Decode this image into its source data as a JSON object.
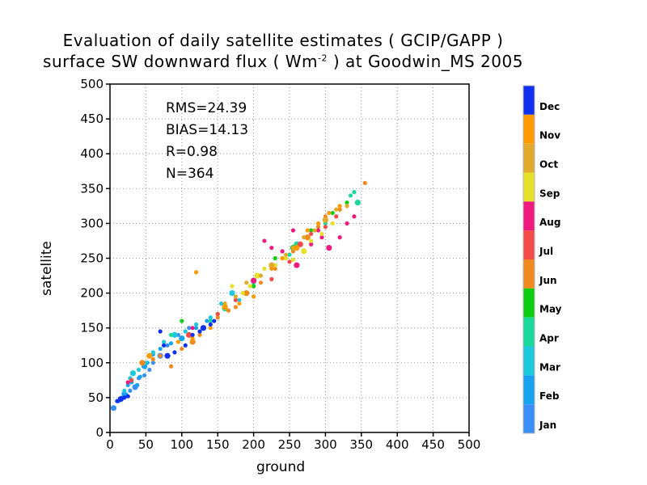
{
  "title": {
    "line1": "Evaluation of daily satellite estimates ( GCIP/GAPP )",
    "line2_pre": "surface SW downward flux ( Wm",
    "line2_sup": "-2",
    "line2_post": " ) at Goodwin_MS 2005"
  },
  "stats": {
    "rms": "RMS=24.39",
    "bias": "BIAS=14.13",
    "r": "R=0.98",
    "n": "N=364"
  },
  "chart_data": {
    "type": "scatter",
    "title": "Evaluation of daily satellite estimates ( GCIP/GAPP ) surface SW downward flux ( Wm-2 ) at Goodwin_MS 2005",
    "xlabel": "ground",
    "ylabel": "satellite",
    "xlim": [
      0,
      500
    ],
    "ylim": [
      0,
      500
    ],
    "xticks": [
      0,
      50,
      100,
      150,
      200,
      250,
      300,
      350,
      400,
      450,
      500
    ],
    "yticks": [
      0,
      50,
      100,
      150,
      200,
      250,
      300,
      350,
      400,
      450,
      500
    ],
    "grid": true,
    "legend": {
      "type": "colorbar",
      "placement": "right",
      "entries": [
        {
          "label": "Jan",
          "color": "#3a8ef5"
        },
        {
          "label": "Feb",
          "color": "#17a3f0"
        },
        {
          "label": "Mar",
          "color": "#1ec8dc"
        },
        {
          "label": "Apr",
          "color": "#19d89a"
        },
        {
          "label": "May",
          "color": "#0fce12"
        },
        {
          "label": "Jun",
          "color": "#f08a1e"
        },
        {
          "label": "Jul",
          "color": "#f54a4a"
        },
        {
          "label": "Aug",
          "color": "#ee1a7e"
        },
        {
          "label": "Sep",
          "color": "#e6e02a"
        },
        {
          "label": "Oct",
          "color": "#e2aa2c"
        },
        {
          "label": "Nov",
          "color": "#ff9b00"
        },
        {
          "label": "Dec",
          "color": "#1030f0"
        }
      ]
    },
    "series": [
      {
        "name": "Jan",
        "color": "#3a8ef5",
        "points": [
          [
            5,
            35
          ],
          [
            12,
            45
          ],
          [
            18,
            50
          ],
          [
            22,
            55
          ],
          [
            28,
            60
          ],
          [
            35,
            65
          ],
          [
            40,
            78
          ],
          [
            48,
            82
          ],
          [
            55,
            90
          ],
          [
            60,
            100
          ],
          [
            70,
            110
          ],
          [
            80,
            125
          ],
          [
            95,
            140
          ],
          [
            110,
            150
          ]
        ]
      },
      {
        "name": "Feb",
        "color": "#17a3f0",
        "points": [
          [
            15,
            48
          ],
          [
            20,
            55
          ],
          [
            25,
            68
          ],
          [
            30,
            72
          ],
          [
            38,
            68
          ],
          [
            42,
            80
          ],
          [
            48,
            95
          ],
          [
            52,
            100
          ],
          [
            60,
            112
          ],
          [
            70,
            120
          ],
          [
            85,
            128
          ],
          [
            100,
            135
          ],
          [
            120,
            150
          ],
          [
            135,
            160
          ]
        ]
      },
      {
        "name": "Mar",
        "color": "#1ec8dc",
        "points": [
          [
            20,
            60
          ],
          [
            28,
            78
          ],
          [
            32,
            85
          ],
          [
            40,
            90
          ],
          [
            50,
            100
          ],
          [
            60,
            115
          ],
          [
            75,
            130
          ],
          [
            90,
            140
          ],
          [
            105,
            145
          ],
          [
            120,
            155
          ],
          [
            140,
            165
          ],
          [
            155,
            185
          ],
          [
            170,
            200
          ],
          [
            180,
            190
          ]
        ]
      },
      {
        "name": "Apr",
        "color": "#19d89a",
        "points": [
          [
            85,
            140
          ],
          [
            95,
            130
          ],
          [
            140,
            160
          ],
          [
            160,
            178
          ],
          [
            190,
            200
          ],
          [
            200,
            215
          ],
          [
            230,
            240
          ],
          [
            250,
            255
          ],
          [
            260,
            270
          ],
          [
            300,
            300
          ],
          [
            320,
            320
          ],
          [
            335,
            340
          ],
          [
            340,
            345
          ],
          [
            345,
            330
          ]
        ]
      },
      {
        "name": "May",
        "color": "#0fce12",
        "points": [
          [
            100,
            160
          ],
          [
            150,
            170
          ],
          [
            200,
            210
          ],
          [
            230,
            250
          ],
          [
            255,
            265
          ],
          [
            280,
            290
          ],
          [
            300,
            305
          ],
          [
            310,
            315
          ],
          [
            330,
            330
          ]
        ]
      },
      {
        "name": "Jun",
        "color": "#f08a1e",
        "points": [
          [
            45,
            100
          ],
          [
            60,
            105
          ],
          [
            70,
            110
          ],
          [
            85,
            95
          ],
          [
            100,
            120
          ],
          [
            115,
            130
          ],
          [
            125,
            140
          ],
          [
            150,
            165
          ],
          [
            165,
            175
          ],
          [
            175,
            180
          ],
          [
            190,
            200
          ],
          [
            210,
            215
          ],
          [
            230,
            235
          ],
          [
            240,
            250
          ],
          [
            255,
            260
          ],
          [
            275,
            280
          ],
          [
            290,
            295
          ],
          [
            300,
            310
          ],
          [
            320,
            320
          ],
          [
            355,
            358
          ]
        ]
      },
      {
        "name": "Jul",
        "color": "#f54a4a",
        "points": [
          [
            30,
            75
          ],
          [
            110,
            140
          ],
          [
            150,
            170
          ],
          [
            175,
            190
          ],
          [
            225,
            220
          ],
          [
            250,
            245
          ],
          [
            265,
            270
          ],
          [
            280,
            285
          ],
          [
            300,
            295
          ],
          [
            315,
            310
          ]
        ]
      },
      {
        "name": "Aug",
        "color": "#ee1a7e",
        "points": [
          [
            25,
            72
          ],
          [
            115,
            150
          ],
          [
            200,
            218
          ],
          [
            215,
            275
          ],
          [
            225,
            265
          ],
          [
            240,
            260
          ],
          [
            255,
            290
          ],
          [
            260,
            240
          ],
          [
            270,
            260
          ],
          [
            280,
            270
          ],
          [
            290,
            290
          ],
          [
            295,
            280
          ],
          [
            305,
            265
          ],
          [
            320,
            280
          ],
          [
            330,
            300
          ],
          [
            340,
            310
          ]
        ]
      },
      {
        "name": "Sep",
        "color": "#e6e02a",
        "points": [
          [
            170,
            210
          ],
          [
            185,
            200
          ],
          [
            195,
            210
          ],
          [
            205,
            225
          ],
          [
            215,
            235
          ],
          [
            230,
            240
          ],
          [
            245,
            250
          ],
          [
            255,
            248
          ],
          [
            270,
            260
          ],
          [
            280,
            275
          ],
          [
            295,
            285
          ],
          [
            310,
            300
          ]
        ]
      },
      {
        "name": "Oct",
        "color": "#e2aa2c",
        "points": [
          [
            160,
            185
          ],
          [
            175,
            195
          ],
          [
            190,
            215
          ],
          [
            210,
            225
          ],
          [
            225,
            240
          ],
          [
            245,
            255
          ],
          [
            255,
            265
          ],
          [
            270,
            280
          ],
          [
            285,
            290
          ],
          [
            300,
            305
          ],
          [
            315,
            320
          ],
          [
            330,
            325
          ]
        ]
      },
      {
        "name": "Nov",
        "color": "#ff9b00",
        "points": [
          [
            55,
            110
          ],
          [
            95,
            130
          ],
          [
            115,
            135
          ],
          [
            120,
            230
          ],
          [
            140,
            150
          ],
          [
            160,
            180
          ],
          [
            180,
            185
          ],
          [
            200,
            195
          ],
          [
            225,
            235
          ],
          [
            240,
            250
          ],
          [
            260,
            265
          ],
          [
            275,
            290
          ],
          [
            290,
            300
          ],
          [
            305,
            315
          ],
          [
            320,
            325
          ]
        ]
      },
      {
        "name": "Dec",
        "color": "#1030f0",
        "points": [
          [
            10,
            45
          ],
          [
            15,
            48
          ],
          [
            20,
            50
          ],
          [
            25,
            52
          ],
          [
            70,
            145
          ],
          [
            75,
            125
          ],
          [
            80,
            110
          ],
          [
            90,
            115
          ],
          [
            105,
            125
          ],
          [
            115,
            140
          ],
          [
            125,
            145
          ],
          [
            130,
            150
          ],
          [
            140,
            155
          ],
          [
            145,
            160
          ]
        ]
      }
    ]
  }
}
